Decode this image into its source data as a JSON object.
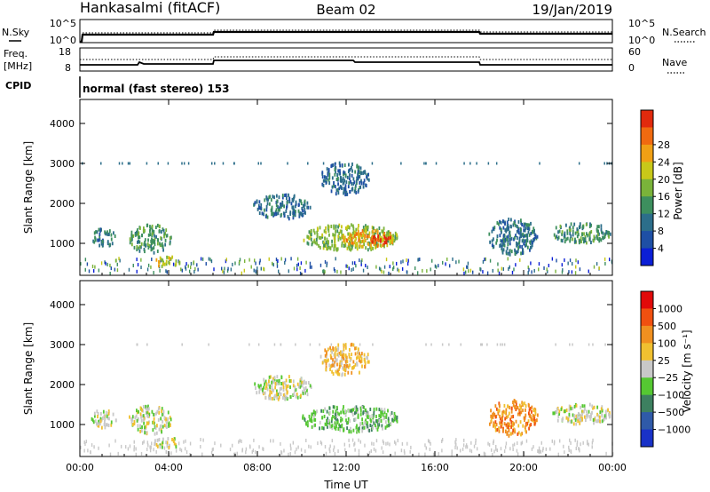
{
  "header": {
    "station": "Hankasalmi (fitACF)",
    "beam": "Beam 02",
    "date": "19/Jan/2019"
  },
  "noise_panel": {
    "left_label": "N.Sky",
    "left_ticks": [
      "10^5",
      "10^0"
    ],
    "right_label": "N.Search",
    "right_ticks": [
      "10^5",
      "10^0"
    ]
  },
  "freq_panel": {
    "left_label_line1": "Freq.",
    "left_label_line2": "[MHz]",
    "left_ticks": [
      "18",
      "8"
    ],
    "right_label": "Nave",
    "right_ticks": [
      "60",
      "0"
    ]
  },
  "cpid": {
    "label": "CPID",
    "text": "normal (fast stereo) 153"
  },
  "chart_data": [
    {
      "type": "heatmap",
      "name": "power",
      "ylabel": "Slant Range [km]",
      "yticks": [
        1000,
        2000,
        3000,
        4000
      ],
      "ylim": [
        200,
        4600
      ],
      "xlim": [
        0,
        24
      ],
      "xtick_labels": [
        "00:00",
        "04:00",
        "08:00",
        "12:00",
        "16:00",
        "20:00",
        "00:00"
      ],
      "colorbar_label": "Power [dB]",
      "colorbar_ticks": [
        "4",
        "8",
        "12",
        "16",
        "20",
        "24",
        "28"
      ],
      "colorbar_colors": [
        "#0b1fd6",
        "#1e4fa5",
        "#2c6e8a",
        "#3d8f5e",
        "#7ab33a",
        "#c8c819",
        "#f0a015",
        "#f06a10",
        "#e12a0d"
      ],
      "blobs": [
        {
          "t0": 0.5,
          "t1": 1.6,
          "r0": 900,
          "r1": 1350,
          "level": 2
        },
        {
          "t0": 2.2,
          "t1": 4.1,
          "r0": 750,
          "r1": 1450,
          "level": 3
        },
        {
          "t0": 3.3,
          "t1": 4.5,
          "r0": 400,
          "r1": 650,
          "level": 5
        },
        {
          "t0": 7.8,
          "t1": 10.4,
          "r0": 1600,
          "r1": 2200,
          "level": 2
        },
        {
          "t0": 10.0,
          "t1": 14.3,
          "r0": 800,
          "r1": 1450,
          "level": 4
        },
        {
          "t0": 11.8,
          "t1": 14.2,
          "r0": 900,
          "r1": 1300,
          "level": 6
        },
        {
          "t0": 13.1,
          "t1": 14.0,
          "r0": 950,
          "r1": 1200,
          "level": 8
        },
        {
          "t0": 10.8,
          "t1": 13.0,
          "r0": 2200,
          "r1": 3000,
          "level": 2
        },
        {
          "t0": 18.4,
          "t1": 20.6,
          "r0": 700,
          "r1": 1600,
          "level": 2
        },
        {
          "t0": 21.2,
          "t1": 23.9,
          "r0": 1000,
          "r1": 1500,
          "level": 3
        }
      ]
    },
    {
      "type": "heatmap",
      "name": "velocity",
      "ylabel": "Slant Range [km]",
      "yticks": [
        1000,
        2000,
        3000,
        4000
      ],
      "ylim": [
        200,
        4600
      ],
      "xlim": [
        0,
        24
      ],
      "xlabel": "Time UT",
      "xtick_labels": [
        "00:00",
        "04:00",
        "08:00",
        "12:00",
        "16:00",
        "20:00",
        "00:00"
      ],
      "colorbar_label": "Velocity [m s⁻¹]",
      "colorbar_ticks": [
        "1000",
        "500",
        "100",
        "25",
        "−25",
        "−100",
        "−500",
        "−1000"
      ],
      "colorbar_colors": [
        "#1932c8",
        "#2f5aa8",
        "#3d8060",
        "#55c832",
        "#c8c8c8",
        "#f0c030",
        "#f09020",
        "#f05010",
        "#e10a0a"
      ],
      "blobs": [
        {
          "t0": 0.5,
          "t1": 1.6,
          "r0": 900,
          "r1": 1350,
          "level": 4
        },
        {
          "t0": 2.2,
          "t1": 4.1,
          "r0": 750,
          "r1": 1450,
          "level": 4
        },
        {
          "t0": 3.3,
          "t1": 4.5,
          "r0": 400,
          "r1": 650,
          "level": 4
        },
        {
          "t0": 7.8,
          "t1": 10.4,
          "r0": 1600,
          "r1": 2200,
          "level": 4
        },
        {
          "t0": 10.0,
          "t1": 14.3,
          "r0": 800,
          "r1": 1450,
          "level": 3
        },
        {
          "t0": 10.8,
          "t1": 13.0,
          "r0": 2200,
          "r1": 3000,
          "level": 5
        },
        {
          "t0": 18.4,
          "t1": 20.6,
          "r0": 700,
          "r1": 1600,
          "level": 6
        },
        {
          "t0": 21.2,
          "t1": 23.9,
          "r0": 1000,
          "r1": 1500,
          "level": 4
        }
      ]
    }
  ]
}
